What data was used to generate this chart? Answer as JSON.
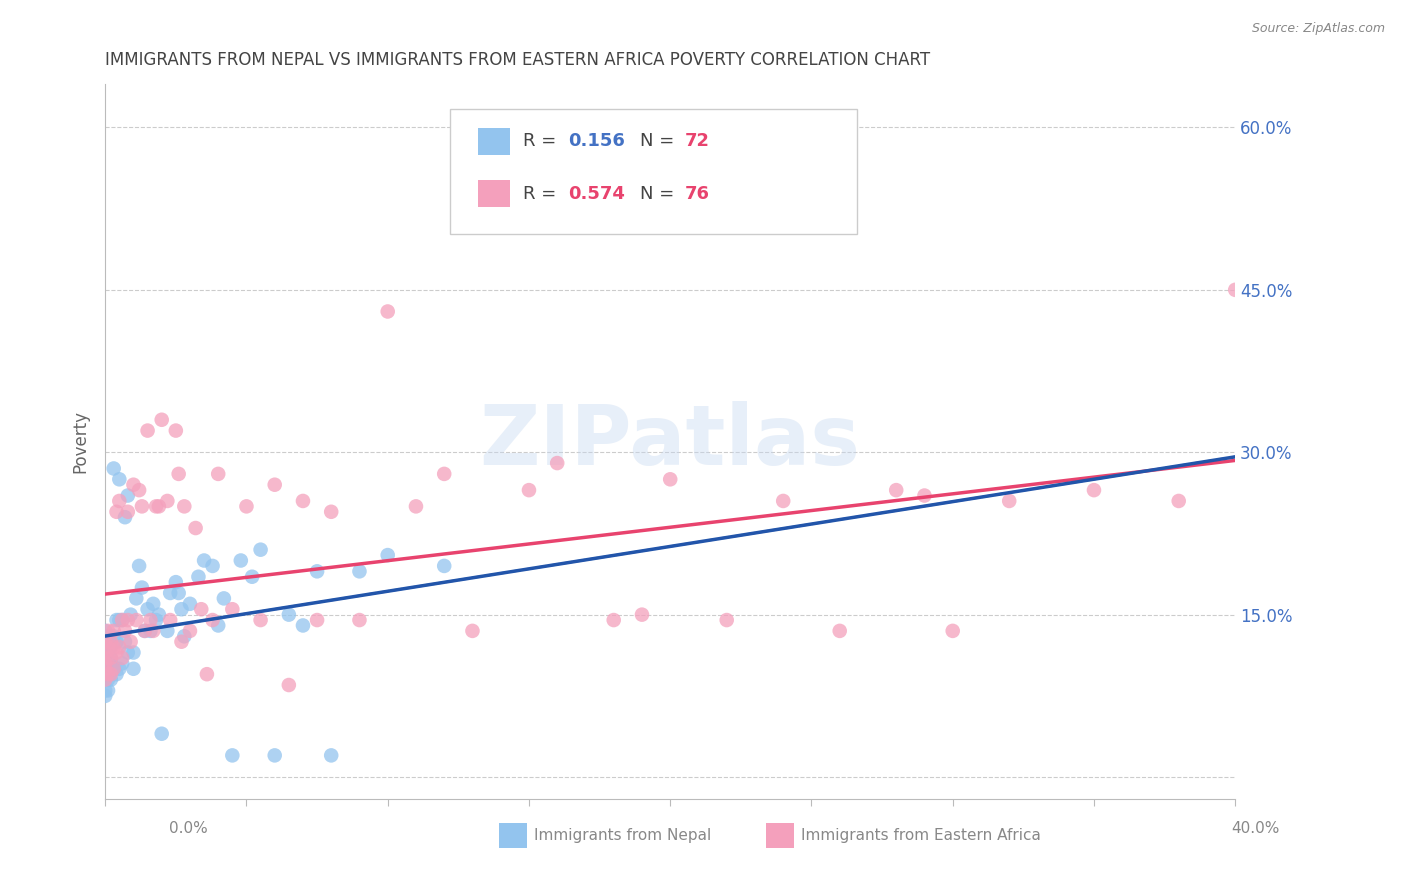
{
  "title": "IMMIGRANTS FROM NEPAL VS IMMIGRANTS FROM EASTERN AFRICA POVERTY CORRELATION CHART",
  "source": "Source: ZipAtlas.com",
  "ylabel": "Poverty",
  "xlim": [
    0.0,
    0.4
  ],
  "ylim": [
    -0.02,
    0.64
  ],
  "yticks": [
    0.0,
    0.15,
    0.3,
    0.45,
    0.6
  ],
  "nepal_R": 0.156,
  "nepal_N": 72,
  "eastern_africa_R": 0.574,
  "eastern_africa_N": 76,
  "nepal_color": "#93c4ee",
  "eastern_africa_color": "#f4a0bc",
  "nepal_line_color": "#2255aa",
  "eastern_africa_line_color": "#e8436e",
  "watermark": "ZIPatlas",
  "nepal_x": [
    0.0,
    0.0,
    0.0,
    0.0,
    0.0,
    0.0,
    0.0,
    0.0,
    0.001,
    0.001,
    0.001,
    0.001,
    0.001,
    0.001,
    0.001,
    0.002,
    0.002,
    0.002,
    0.002,
    0.002,
    0.003,
    0.003,
    0.003,
    0.004,
    0.004,
    0.004,
    0.005,
    0.005,
    0.005,
    0.006,
    0.006,
    0.007,
    0.007,
    0.008,
    0.008,
    0.009,
    0.01,
    0.01,
    0.011,
    0.012,
    0.013,
    0.014,
    0.015,
    0.016,
    0.017,
    0.018,
    0.019,
    0.02,
    0.022,
    0.023,
    0.025,
    0.026,
    0.027,
    0.028,
    0.03,
    0.033,
    0.035,
    0.038,
    0.04,
    0.042,
    0.045,
    0.048,
    0.052,
    0.055,
    0.06,
    0.065,
    0.07,
    0.075,
    0.08,
    0.09,
    0.1,
    0.12
  ],
  "nepal_y": [
    0.135,
    0.12,
    0.11,
    0.105,
    0.1,
    0.09,
    0.08,
    0.075,
    0.13,
    0.12,
    0.115,
    0.105,
    0.1,
    0.09,
    0.08,
    0.12,
    0.11,
    0.105,
    0.1,
    0.09,
    0.285,
    0.13,
    0.1,
    0.145,
    0.125,
    0.095,
    0.275,
    0.145,
    0.1,
    0.145,
    0.105,
    0.24,
    0.125,
    0.26,
    0.115,
    0.15,
    0.115,
    0.1,
    0.165,
    0.195,
    0.175,
    0.135,
    0.155,
    0.135,
    0.16,
    0.145,
    0.15,
    0.04,
    0.135,
    0.17,
    0.18,
    0.17,
    0.155,
    0.13,
    0.16,
    0.185,
    0.2,
    0.195,
    0.14,
    0.165,
    0.02,
    0.2,
    0.185,
    0.21,
    0.02,
    0.15,
    0.14,
    0.19,
    0.02,
    0.19,
    0.205,
    0.195
  ],
  "eastern_africa_x": [
    0.0,
    0.0,
    0.0,
    0.0,
    0.0,
    0.001,
    0.001,
    0.001,
    0.001,
    0.002,
    0.002,
    0.002,
    0.003,
    0.003,
    0.003,
    0.004,
    0.004,
    0.005,
    0.005,
    0.006,
    0.006,
    0.007,
    0.008,
    0.008,
    0.009,
    0.01,
    0.011,
    0.012,
    0.013,
    0.014,
    0.015,
    0.016,
    0.017,
    0.018,
    0.019,
    0.02,
    0.022,
    0.023,
    0.025,
    0.026,
    0.027,
    0.028,
    0.03,
    0.032,
    0.034,
    0.036,
    0.038,
    0.04,
    0.045,
    0.05,
    0.055,
    0.06,
    0.065,
    0.07,
    0.075,
    0.08,
    0.09,
    0.1,
    0.11,
    0.12,
    0.13,
    0.15,
    0.16,
    0.18,
    0.2,
    0.22,
    0.24,
    0.26,
    0.28,
    0.3,
    0.32,
    0.35,
    0.38,
    0.4,
    0.19,
    0.29
  ],
  "eastern_africa_y": [
    0.125,
    0.115,
    0.105,
    0.1,
    0.09,
    0.135,
    0.12,
    0.11,
    0.095,
    0.125,
    0.11,
    0.095,
    0.135,
    0.12,
    0.1,
    0.245,
    0.115,
    0.255,
    0.12,
    0.145,
    0.11,
    0.135,
    0.245,
    0.145,
    0.125,
    0.27,
    0.145,
    0.265,
    0.25,
    0.135,
    0.32,
    0.145,
    0.135,
    0.25,
    0.25,
    0.33,
    0.255,
    0.145,
    0.32,
    0.28,
    0.125,
    0.25,
    0.135,
    0.23,
    0.155,
    0.095,
    0.145,
    0.28,
    0.155,
    0.25,
    0.145,
    0.27,
    0.085,
    0.255,
    0.145,
    0.245,
    0.145,
    0.43,
    0.25,
    0.28,
    0.135,
    0.265,
    0.29,
    0.145,
    0.275,
    0.145,
    0.255,
    0.135,
    0.265,
    0.135,
    0.255,
    0.265,
    0.255,
    0.45,
    0.15,
    0.26
  ],
  "grid_color": "#cccccc",
  "axis_color": "#bbbbbb",
  "title_color": "#444444",
  "label_color": "#4472c4",
  "background_color": "#ffffff"
}
